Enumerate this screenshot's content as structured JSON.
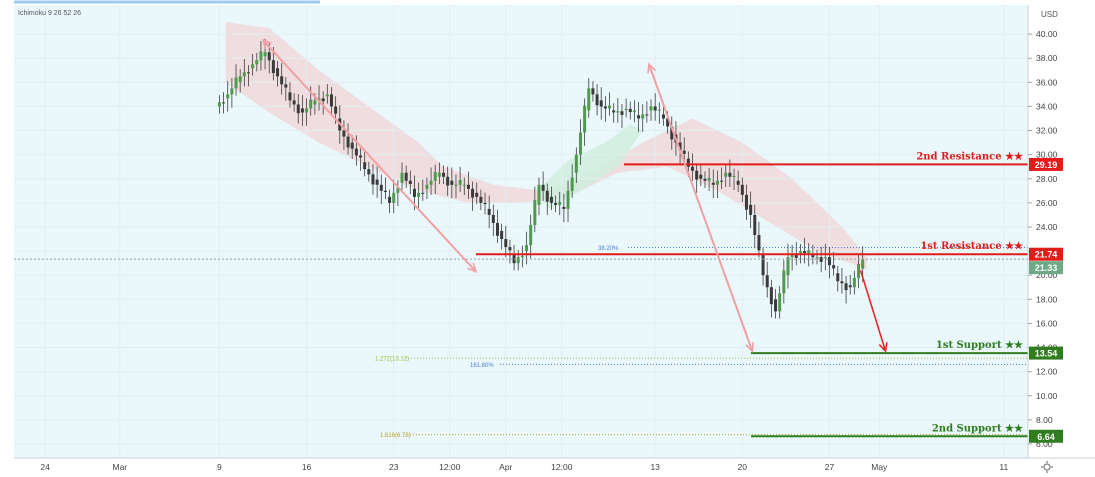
{
  "indicator_label": "Ichimoku 9 26 52 26",
  "currency": "USD",
  "chart_data": {
    "type": "candlestick",
    "y_axis": {
      "ylim": [
        5.5,
        42.0
      ],
      "ticks": [
        "40.00",
        "38.00",
        "36.00",
        "34.00",
        "32.00",
        "30.00",
        "28.00",
        "26.00",
        "24.00",
        "22.00",
        "20.00",
        "18.00",
        "16.00",
        "14.00",
        "12.00",
        "10.00",
        "8.00",
        "6.00"
      ],
      "tick_values": [
        40,
        38,
        36,
        34,
        32,
        30,
        28,
        26,
        24,
        22,
        20,
        18,
        16,
        14,
        12,
        10,
        8,
        6
      ]
    },
    "x_axis": {
      "labels": [
        "24",
        "Mar",
        "9",
        "16",
        "23",
        "12:00",
        "Apr",
        "12:00",
        "13",
        "20",
        "27",
        "May",
        "11"
      ],
      "positions_days": [
        -6,
        0,
        8,
        15,
        22,
        26.5,
        31,
        35.5,
        43,
        50,
        57,
        61,
        71
      ]
    },
    "price_levels": [
      {
        "name": "2nd Resistance ★★",
        "value": 29.19,
        "tag": "29.19",
        "color": "#e31b1b"
      },
      {
        "name": "1st Resistance ★★",
        "value": 21.74,
        "tag": "21.74",
        "color": "#e31b1b"
      },
      {
        "name": "1st Support ★★",
        "value": 13.54,
        "tag": "13.54",
        "color": "#2f7d1e"
      },
      {
        "name": "2nd Support ★★",
        "value": 6.64,
        "tag": "6.64",
        "color": "#2f7d1e"
      }
    ],
    "last_price": {
      "value": 21.33,
      "tag": "21.33",
      "color": "#6ea985"
    },
    "fib_levels": [
      {
        "label": "38.20%",
        "value": 22.3,
        "color": "#4a7fd0"
      },
      {
        "label": "1.272(13.12)",
        "value": 13.12,
        "color": "#9fbf3a"
      },
      {
        "label": "161.80%",
        "value": 12.6,
        "color": "#4a7fd0"
      },
      {
        "label": "1.618(6.78)",
        "value": 6.78,
        "color": "#b8a12a"
      }
    ],
    "swing_arrows": [
      {
        "from": [
          11.5,
          39.5
        ],
        "to": [
          28.6,
          20.3
        ]
      },
      {
        "from": [
          42.5,
          37.5
        ],
        "to": [
          50.8,
          13.7
        ]
      },
      {
        "from": [
          59.5,
          20.4
        ],
        "to": [
          61.5,
          13.7
        ]
      }
    ],
    "close_series": {
      "days": [
        8,
        9,
        10,
        11,
        12,
        13,
        14,
        15,
        16,
        17,
        18,
        19,
        20,
        21,
        22,
        23,
        24,
        25,
        26,
        27,
        28,
        29,
        30,
        31,
        32,
        33,
        34,
        35,
        36,
        37,
        38,
        39,
        40,
        41,
        42,
        43,
        44,
        45,
        46,
        47,
        48,
        49,
        50,
        51,
        52,
        53,
        54,
        55,
        56,
        57,
        58,
        59
      ],
      "close": [
        35.0,
        36.5,
        37.5,
        38.5,
        36.5,
        34.5,
        33.5,
        34.5,
        35.0,
        32.0,
        30.5,
        28.8,
        27.5,
        26.0,
        28.5,
        26.5,
        27.5,
        28.5,
        27.5,
        27.5,
        26.5,
        25.0,
        23.0,
        21.0,
        22.5,
        27.5,
        26.0,
        25.5,
        30.0,
        35.5,
        34.0,
        33.5,
        33.8,
        33.0,
        34.0,
        33.0,
        31.0,
        29.0,
        28.0,
        27.5,
        28.5,
        27.5,
        25.0,
        20.0,
        17.0,
        21.5,
        22.0,
        21.5,
        21.5,
        19.5,
        19.0,
        21.3
      ]
    }
  }
}
